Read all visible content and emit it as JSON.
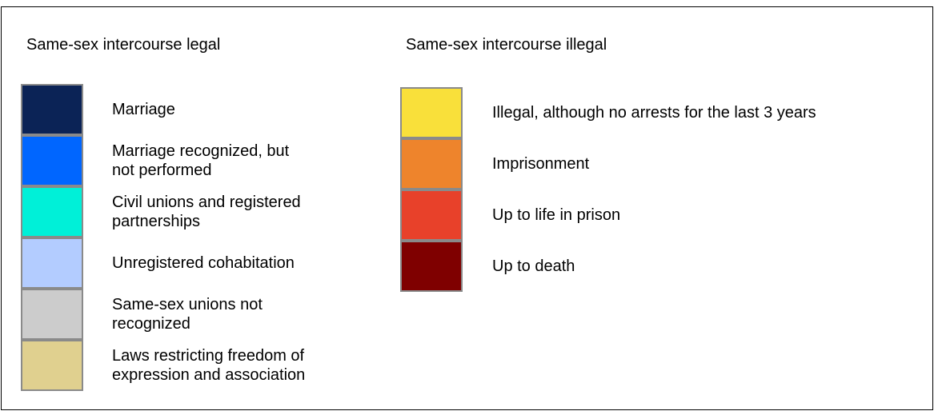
{
  "legend": {
    "groups": [
      {
        "heading": "Same-sex intercourse legal",
        "items": [
          {
            "lines": [
              "Marriage"
            ],
            "color": "#0b2356"
          },
          {
            "lines": [
              "Marriage recognized, but",
              "not performed"
            ],
            "color": "#0066ff"
          },
          {
            "lines": [
              "Civil unions and registered",
              "partnerships"
            ],
            "color": "#00f0d8"
          },
          {
            "lines": [
              "Unregistered cohabitation"
            ],
            "color": "#b3ccff"
          },
          {
            "lines": [
              "Same-sex unions not",
              "recognized"
            ],
            "color": "#cccccc"
          },
          {
            "lines": [
              "Laws restricting freedom of",
              "expression and association"
            ],
            "color": "#e0d08f"
          }
        ]
      },
      {
        "heading": "Same-sex intercourse illegal",
        "items": [
          {
            "lines": [
              "Illegal, although no arrests for the last 3 years"
            ],
            "color": "#f9e03a"
          },
          {
            "lines": [
              "Imprisonment"
            ],
            "color": "#ee842c"
          },
          {
            "lines": [
              "Up to life in prison"
            ],
            "color": "#e8412a"
          },
          {
            "lines": [
              "Up to death"
            ],
            "color": "#7f0000"
          }
        ]
      }
    ]
  }
}
